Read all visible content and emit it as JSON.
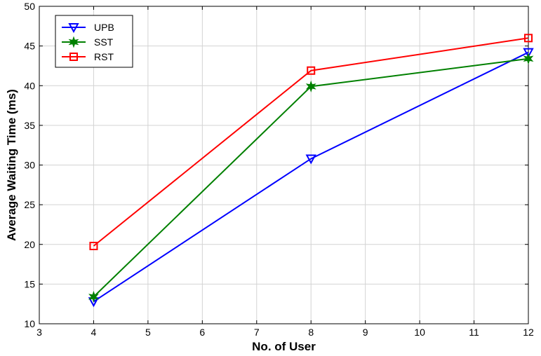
{
  "chart_data": {
    "type": "line",
    "title": "",
    "xlabel": "No. of User",
    "ylabel": "Average Waiting Time (ms)",
    "xlim": [
      3,
      12
    ],
    "ylim": [
      10,
      50
    ],
    "xticks": [
      3,
      4,
      5,
      6,
      7,
      8,
      9,
      10,
      11,
      12
    ],
    "yticks": [
      10,
      15,
      20,
      25,
      30,
      35,
      40,
      45,
      50
    ],
    "grid": true,
    "legend_position": "top-left",
    "x": [
      4,
      8,
      12
    ],
    "series": [
      {
        "name": "UPB",
        "values": [
          12.8,
          30.8,
          44.2
        ],
        "color": "#0000ff",
        "marker": "triangle-down"
      },
      {
        "name": "SST",
        "values": [
          13.4,
          39.9,
          43.4
        ],
        "color": "#008000",
        "marker": "star"
      },
      {
        "name": "RST",
        "values": [
          19.8,
          41.9,
          46.0
        ],
        "color": "#ff0000",
        "marker": "square"
      }
    ]
  }
}
